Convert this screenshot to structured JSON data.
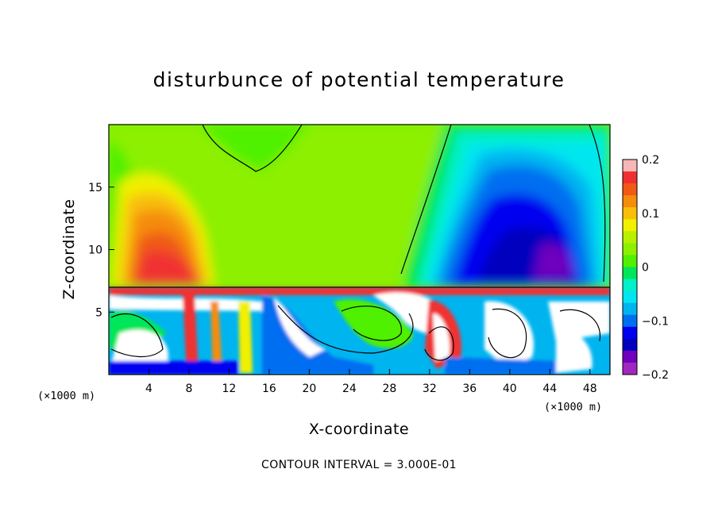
{
  "chart_data": {
    "type": "heatmap",
    "title": "disturbunce of potential temperature",
    "xlabel": "X-coordinate",
    "ylabel": "Z-coordinate",
    "x_unit_left": "(×1000 m)",
    "x_unit_right": "(×1000 m)",
    "xlim": [
      0,
      50
    ],
    "ylim": [
      0,
      20
    ],
    "x_ticks": [
      4,
      8,
      12,
      16,
      20,
      24,
      28,
      32,
      36,
      40,
      44,
      48
    ],
    "x_tick_labels": [
      "4",
      "8",
      "12",
      "16",
      "20",
      "24",
      "28",
      "32",
      "36",
      "40",
      "44",
      "48"
    ],
    "y_ticks": [
      5,
      10,
      15
    ],
    "y_tick_labels": [
      "5",
      "10",
      "15"
    ],
    "colorbar": {
      "min": -0.2,
      "max": 0.2,
      "tick_values": [
        0.2,
        0.1,
        0,
        -0.1,
        -0.2
      ],
      "tick_labels": [
        "0.2",
        "0.1",
        "0",
        "−0.1",
        "−0.2"
      ],
      "colors": [
        "#f8b6b6",
        "#f03030",
        "#f05a14",
        "#f58c0a",
        "#f8be0a",
        "#f0f000",
        "#b9f000",
        "#8cf000",
        "#50f000",
        "#00e65a",
        "#00f0c8",
        "#00e6f0",
        "#00b4f0",
        "#006ef0",
        "#0000f0",
        "#0000be",
        "#6e00be",
        "#a028be"
      ]
    },
    "contour_interval_text": "CONTOUR INTERVAL = 3.000E-01"
  }
}
